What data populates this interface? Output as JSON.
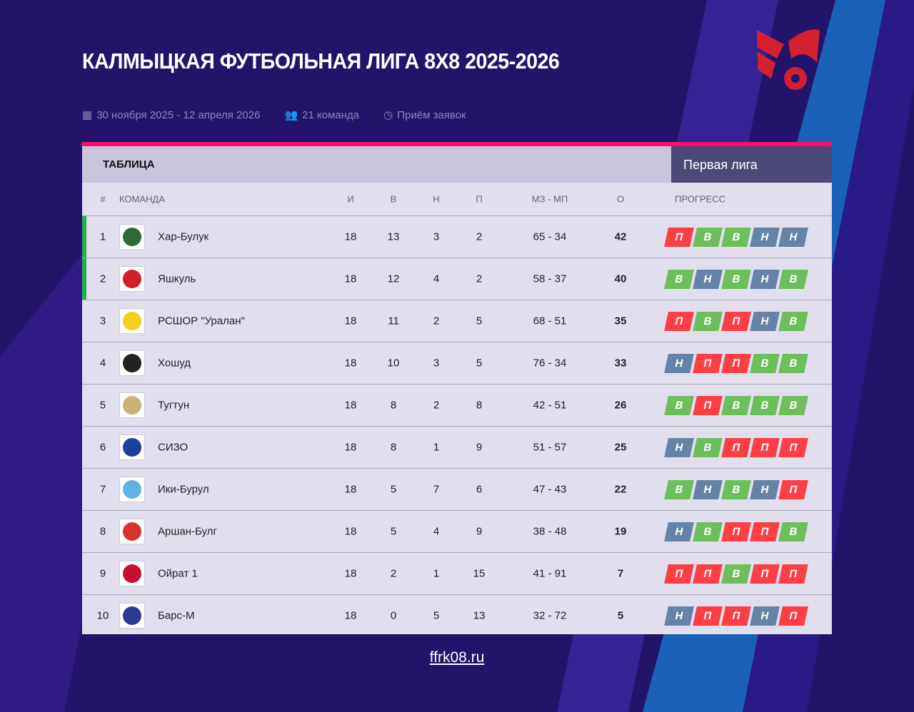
{
  "title": "КАЛМЫЦКАЯ ФУТБОЛЬНАЯ ЛИГА 8Х8 2025-2026",
  "meta": {
    "dates": "30 ноября 2025 - 12 апреля 2026",
    "teams": "21 команда",
    "status": "Приём заявок"
  },
  "table": {
    "label": "ТАБЛИЦА",
    "league": "Первая лига",
    "headers": {
      "pos": "#",
      "team": "КОМАНДА",
      "played": "И",
      "won": "В",
      "drawn": "Н",
      "lost": "П",
      "goals": "МЗ - МП",
      "points": "О",
      "progress": "ПРОГРЕСС"
    },
    "rows": [
      {
        "pos": "1",
        "team": "Хар-Булук",
        "played": "18",
        "won": "13",
        "drawn": "3",
        "lost": "2",
        "goals": "65 - 34",
        "points": "42",
        "progress": [
          "П",
          "В",
          "В",
          "Н",
          "Н"
        ],
        "leader": true,
        "logo_color": "#2d6a3a"
      },
      {
        "pos": "2",
        "team": "Яшкуль",
        "played": "18",
        "won": "12",
        "drawn": "4",
        "lost": "2",
        "goals": "58 - 37",
        "points": "40",
        "progress": [
          "В",
          "Н",
          "В",
          "Н",
          "В"
        ],
        "leader": true,
        "logo_color": "#d21f2b"
      },
      {
        "pos": "3",
        "team": "РСШОР \"Уралан\"",
        "played": "18",
        "won": "11",
        "drawn": "2",
        "lost": "5",
        "goals": "68 - 51",
        "points": "35",
        "progress": [
          "П",
          "В",
          "П",
          "Н",
          "В"
        ],
        "logo_color": "#f2d21b"
      },
      {
        "pos": "4",
        "team": "Хошуд",
        "played": "18",
        "won": "10",
        "drawn": "3",
        "lost": "5",
        "goals": "76 - 34",
        "points": "33",
        "progress": [
          "Н",
          "П",
          "П",
          "В",
          "В"
        ],
        "logo_color": "#222222"
      },
      {
        "pos": "5",
        "team": "Тугтун",
        "played": "18",
        "won": "8",
        "drawn": "2",
        "lost": "8",
        "goals": "42 - 51",
        "points": "26",
        "progress": [
          "В",
          "П",
          "В",
          "В",
          "В"
        ],
        "logo_color": "#c9b27a"
      },
      {
        "pos": "6",
        "team": "СИЗО",
        "played": "18",
        "won": "8",
        "drawn": "1",
        "lost": "9",
        "goals": "51 - 57",
        "points": "25",
        "progress": [
          "Н",
          "В",
          "П",
          "П",
          "П"
        ],
        "logo_color": "#1c3f9c"
      },
      {
        "pos": "7",
        "team": "Ики-Бурул",
        "played": "18",
        "won": "5",
        "drawn": "7",
        "lost": "6",
        "goals": "47 - 43",
        "points": "22",
        "progress": [
          "В",
          "Н",
          "В",
          "Н",
          "П"
        ],
        "logo_color": "#5fb3e0"
      },
      {
        "pos": "8",
        "team": "Аршан-Булг",
        "played": "18",
        "won": "5",
        "drawn": "4",
        "lost": "9",
        "goals": "38 - 48",
        "points": "19",
        "progress": [
          "Н",
          "В",
          "П",
          "П",
          "В"
        ],
        "logo_color": "#d8332a"
      },
      {
        "pos": "9",
        "team": "Ойрат 1",
        "played": "18",
        "won": "2",
        "drawn": "1",
        "lost": "15",
        "goals": "41 - 91",
        "points": "7",
        "progress": [
          "П",
          "П",
          "В",
          "П",
          "П"
        ],
        "logo_color": "#c8102e"
      },
      {
        "pos": "10",
        "team": "Барс-М",
        "played": "18",
        "won": "0",
        "drawn": "5",
        "lost": "13",
        "goals": "32 - 72",
        "points": "5",
        "progress": [
          "Н",
          "П",
          "П",
          "Н",
          "П"
        ],
        "logo_color": "#2b3a8f"
      }
    ]
  },
  "colors": {
    "В": "#6cbf5a",
    "Н": "#6583a6",
    "П": "#fb3f45",
    "accent": "#ff0a6c",
    "leader": "#22b14c"
  },
  "footer": "ffrk08.ru"
}
